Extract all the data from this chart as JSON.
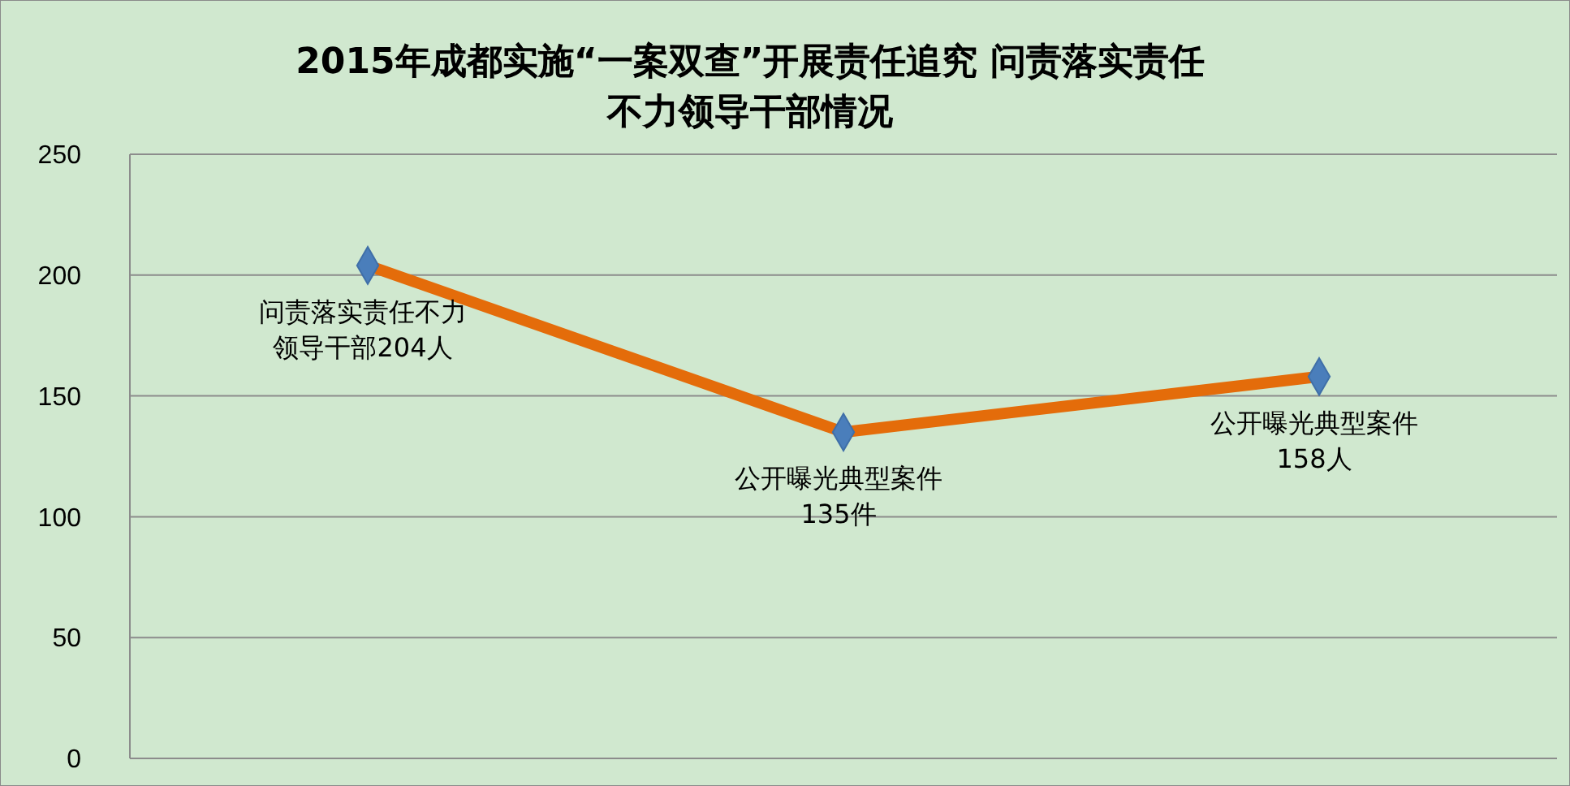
{
  "chart_data": {
    "type": "line",
    "title": "2015年成都实施“一案双查”开展责任追究 问责落实责任不力领导干部情况",
    "categories": [
      null,
      null,
      null
    ],
    "series": [
      {
        "color": "#e46c0a",
        "values": [
          204,
          135,
          158
        ],
        "value_labels": [
          "问责落实责任不力领导干部204人",
          "公开曝光典型案件135件",
          "公开曝光典型案件158人"
        ]
      }
    ],
    "ylim": [
      0,
      250
    ],
    "yticks": [
      0,
      50,
      100,
      150,
      200,
      250
    ],
    "grid": "y",
    "marker": "diamond",
    "line_style": "solid"
  }
}
